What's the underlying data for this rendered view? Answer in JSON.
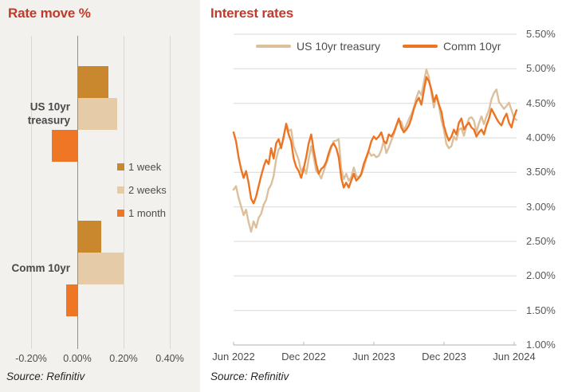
{
  "chart_data": [
    {
      "type": "bar",
      "orientation": "horizontal",
      "title": "Rate move %",
      "source": "Source: Refinitiv",
      "value_unit": "%",
      "categories": [
        "US 10yr treasury",
        "Comm 10yr"
      ],
      "series": [
        {
          "name": "1 week",
          "color": "#c9882d",
          "values": [
            0.13,
            0.1
          ]
        },
        {
          "name": "2 weeks",
          "color": "#e6cba8",
          "values": [
            0.17,
            0.195
          ]
        },
        {
          "name": "1 month",
          "color": "#ee7624",
          "values": [
            -0.11,
            -0.05
          ]
        }
      ],
      "x_ticks": [
        {
          "value": -0.2,
          "label": "-0.20%"
        },
        {
          "value": 0.0,
          "label": "0.00%"
        },
        {
          "value": 0.2,
          "label": "0.20%"
        },
        {
          "value": 0.4,
          "label": "0.40%"
        }
      ],
      "xlim": [
        -0.33,
        0.46
      ],
      "grid": "vertical"
    },
    {
      "type": "line",
      "title": "Interest rates",
      "source": "Source: Refinitiv",
      "legend_position": "top",
      "ylim": [
        1.0,
        5.5
      ],
      "x_domain_months": [
        0,
        24.2
      ],
      "x_ticks": [
        {
          "month": 0,
          "label": "Jun 2022"
        },
        {
          "month": 6,
          "label": "Dec 2022"
        },
        {
          "month": 12,
          "label": "Jun 2023"
        },
        {
          "month": 18,
          "label": "Dec 2023"
        },
        {
          "month": 24,
          "label": "Jun 2024"
        }
      ],
      "y_ticks": [
        {
          "value": 5.5,
          "label": "5.50%"
        },
        {
          "value": 5.0,
          "label": "5.00%"
        },
        {
          "value": 4.5,
          "label": "4.50%"
        },
        {
          "value": 4.0,
          "label": "4.00%"
        },
        {
          "value": 3.5,
          "label": "3.50%"
        },
        {
          "value": 3.0,
          "label": "3.00%"
        },
        {
          "value": 2.5,
          "label": "2.50%"
        },
        {
          "value": 2.0,
          "label": "2.00%"
        },
        {
          "value": 1.5,
          "label": "1.50%"
        },
        {
          "value": 1.0,
          "label": "1.00%"
        }
      ],
      "series": [
        {
          "name": "US 10yr treasury",
          "color": "#dcc09c",
          "values": [
            3.25,
            3.3,
            3.13,
            3.01,
            2.88,
            2.96,
            2.78,
            2.64,
            2.79,
            2.7,
            2.84,
            2.9,
            3.03,
            3.1,
            3.26,
            3.32,
            3.45,
            3.69,
            3.83,
            3.88,
            3.99,
            4.21,
            4.1,
            4.12,
            3.88,
            3.78,
            3.68,
            3.51,
            3.58,
            3.48,
            3.69,
            3.88,
            3.72,
            3.52,
            3.48,
            3.41,
            3.52,
            3.63,
            3.74,
            3.86,
            3.95,
            3.96,
            3.98,
            3.55,
            3.4,
            3.48,
            3.38,
            3.43,
            3.57,
            3.45,
            3.42,
            3.46,
            3.57,
            3.7,
            3.8,
            3.74,
            3.76,
            3.72,
            3.74,
            3.82,
            3.96,
            3.78,
            3.86,
            3.96,
            4.05,
            4.17,
            4.26,
            4.23,
            4.11,
            4.18,
            4.27,
            4.34,
            4.44,
            4.58,
            4.68,
            4.62,
            4.8,
            4.99,
            4.88,
            4.66,
            4.44,
            4.61,
            4.47,
            4.26,
            4.12,
            3.91,
            3.85,
            3.88,
            4.02,
            3.97,
            4.12,
            4.14,
            4.03,
            4.17,
            4.28,
            4.3,
            4.25,
            4.08,
            4.21,
            4.31,
            4.2,
            4.31,
            4.4,
            4.56,
            4.65,
            4.7,
            4.52,
            4.47,
            4.42,
            4.46,
            4.51,
            4.4,
            4.29,
            4.26
          ]
        },
        {
          "name": "Comm 10yr",
          "color": "#ed7423",
          "values": [
            4.08,
            3.95,
            3.72,
            3.55,
            3.42,
            3.52,
            3.35,
            3.12,
            3.05,
            3.15,
            3.3,
            3.45,
            3.58,
            3.68,
            3.62,
            3.85,
            3.7,
            3.92,
            3.98,
            3.85,
            4.02,
            4.2,
            4.05,
            3.95,
            3.7,
            3.58,
            3.52,
            3.42,
            3.55,
            3.72,
            3.92,
            4.05,
            3.82,
            3.62,
            3.48,
            3.55,
            3.58,
            3.65,
            3.78,
            3.88,
            3.92,
            3.85,
            3.72,
            3.42,
            3.28,
            3.35,
            3.28,
            3.38,
            3.48,
            3.38,
            3.42,
            3.48,
            3.62,
            3.72,
            3.82,
            3.95,
            4.02,
            3.98,
            4.02,
            4.08,
            3.95,
            3.92,
            4.05,
            4.02,
            4.08,
            4.18,
            4.28,
            4.15,
            4.08,
            4.12,
            4.18,
            4.28,
            4.42,
            4.52,
            4.58,
            4.48,
            4.68,
            4.88,
            4.82,
            4.7,
            4.52,
            4.62,
            4.48,
            4.38,
            4.18,
            4.05,
            3.96,
            4.02,
            4.12,
            4.05,
            4.22,
            4.28,
            4.12,
            4.18,
            4.22,
            4.15,
            4.12,
            4.02,
            4.08,
            4.12,
            4.05,
            4.18,
            4.28,
            4.42,
            4.35,
            4.28,
            4.22,
            4.18,
            4.28,
            4.35,
            4.22,
            4.15,
            4.3,
            4.4
          ]
        }
      ],
      "grid": "horizontal"
    }
  ],
  "colors": {
    "title_red": "#c13a2a",
    "gridline": "#d8d8d8",
    "zero_line": "#8f8f8f",
    "axis_line": "#c0c0c0",
    "left_panel_bg": "#f2f1ee",
    "text_gray": "#4d4d4d"
  }
}
